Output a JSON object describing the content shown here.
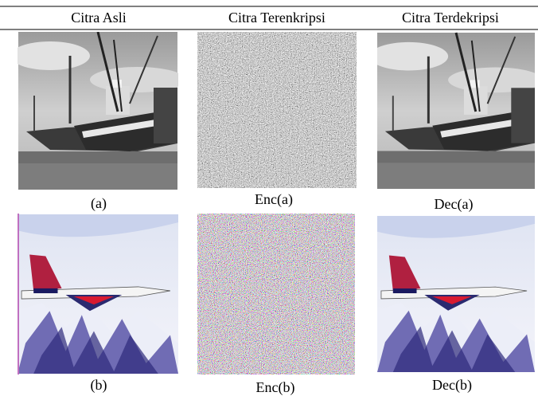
{
  "table": {
    "header": [
      "Citra Asli",
      "Citra Terenkripsi",
      "Citra Terdekripsi"
    ],
    "rows": [
      [
        "(a)",
        "Enc(a)",
        "Dec(a)"
      ],
      [
        "(b)",
        "Enc(b)",
        "Dec(b)"
      ]
    ]
  }
}
